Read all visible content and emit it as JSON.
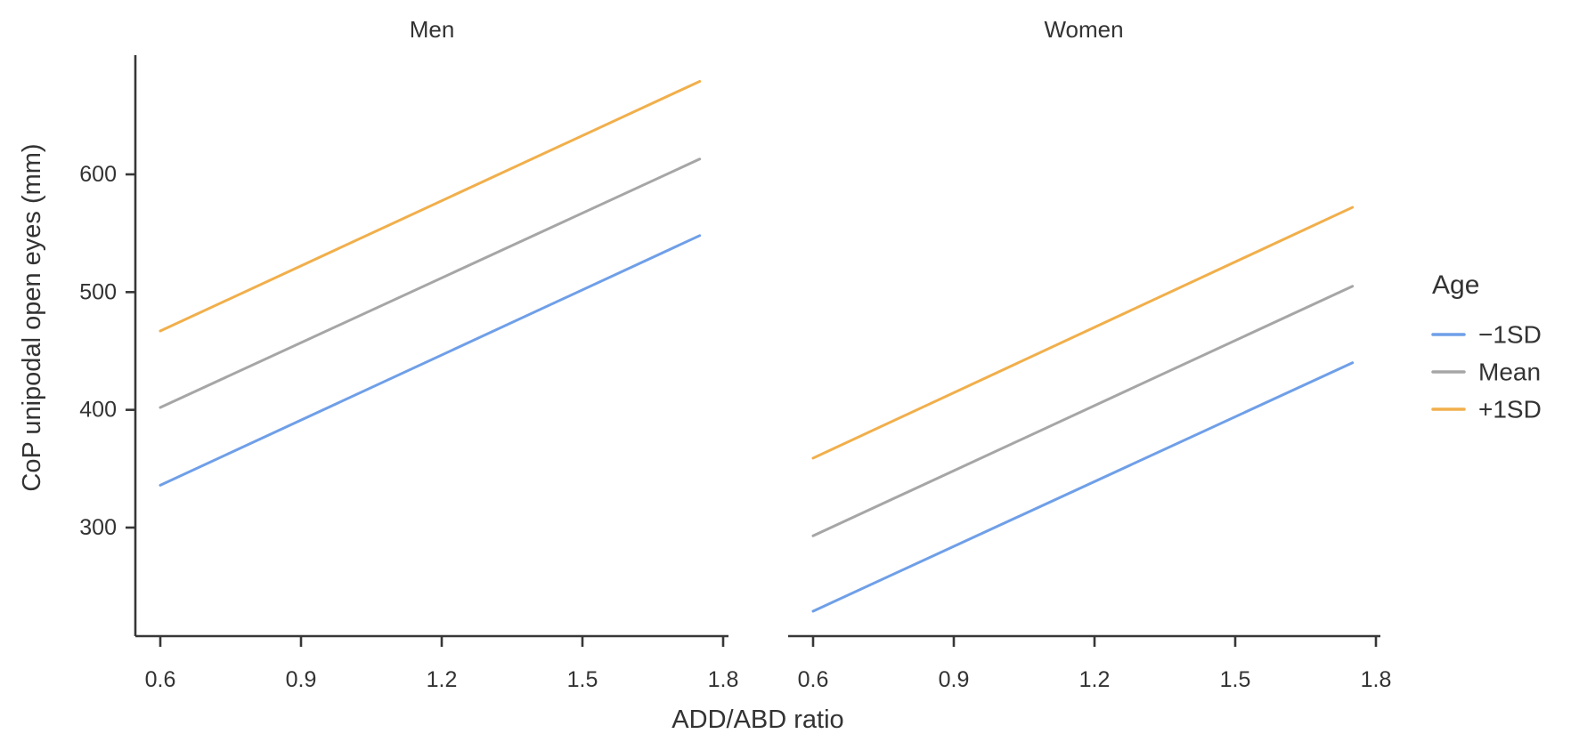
{
  "chart_data": {
    "type": "line",
    "title": "",
    "xlabel": "ADD/ABD ratio",
    "ylabel": "CoP unipodal open eyes (mm)",
    "x_ticks": [
      0.6,
      0.9,
      1.2,
      1.5,
      1.8
    ],
    "y_ticks": [
      300,
      400,
      500,
      600
    ],
    "x_range": [
      0.55,
      1.81
    ],
    "y_range": [
      208,
      701
    ],
    "grid": false,
    "facets": [
      {
        "label": "Men",
        "series": [
          {
            "key": "minus-1sd",
            "name": "−1SD",
            "x": [
              0.6,
              1.75
            ],
            "y": [
              336,
              548
            ]
          },
          {
            "key": "mean",
            "name": "Mean",
            "x": [
              0.6,
              1.75
            ],
            "y": [
              402,
              613
            ]
          },
          {
            "key": "plus-1sd",
            "name": "+1SD",
            "x": [
              0.6,
              1.75
            ],
            "y": [
              467,
              679
            ]
          }
        ]
      },
      {
        "label": "Women",
        "series": [
          {
            "key": "minus-1sd",
            "name": "−1SD",
            "x": [
              0.6,
              1.75
            ],
            "y": [
              229,
              440
            ]
          },
          {
            "key": "mean",
            "name": "Mean",
            "x": [
              0.6,
              1.75
            ],
            "y": [
              293,
              505
            ]
          },
          {
            "key": "plus-1sd",
            "name": "+1SD",
            "x": [
              0.6,
              1.75
            ],
            "y": [
              359,
              572
            ]
          }
        ]
      }
    ],
    "legend": {
      "title": "Age",
      "position": "right",
      "entries": [
        {
          "label": "−1SD",
          "color": "#6F9FE8"
        },
        {
          "label": "Mean",
          "color": "#A6A6A6"
        },
        {
          "label": "+1SD",
          "color": "#F1AF4B"
        }
      ]
    },
    "colors": {
      "axis": "#373737",
      "text": "#333333",
      "background": "#FFFFFF"
    }
  }
}
